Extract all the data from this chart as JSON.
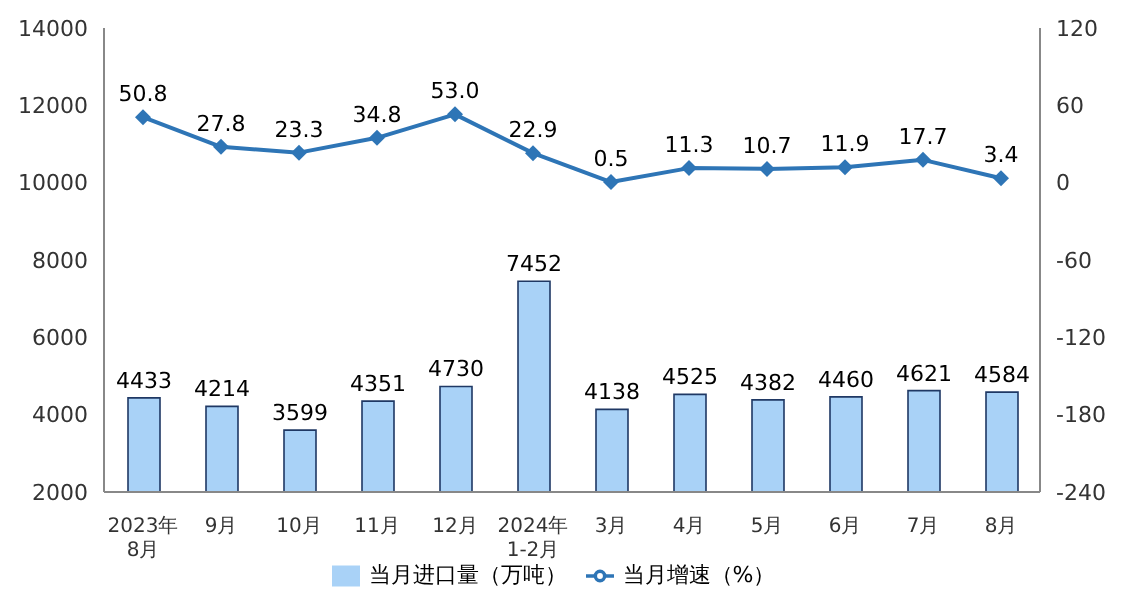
{
  "chart_data": {
    "type": "bar",
    "categories": [
      "2023年\n8月",
      "9月",
      "10月",
      "11月",
      "12月",
      "2024年\n1-2月",
      "3月",
      "4月",
      "5月",
      "6月",
      "7月",
      "8月"
    ],
    "series": [
      {
        "name": "当月进口量（万吨）",
        "color": "#a9d2f7",
        "values": [
          4433,
          4214,
          3599,
          4351,
          4730,
          7452,
          4138,
          4525,
          4382,
          4460,
          4621,
          4584
        ]
      },
      {
        "name": "当月增速（%）",
        "type": "line",
        "axis": "y2",
        "color": "#2e75b6",
        "values": [
          50.8,
          27.8,
          23.3,
          34.8,
          53.0,
          22.9,
          0.5,
          11.3,
          10.7,
          11.9,
          17.7,
          3.4
        ],
        "value_labels": [
          "50.8",
          "27.8",
          "23.3",
          "34.8",
          "53.0",
          "22.9",
          "0.5",
          "11.3",
          "10.7",
          "11.9",
          "17.7",
          "3.4"
        ]
      }
    ],
    "ylim": [
      2000,
      14000
    ],
    "yticks": [
      2000,
      4000,
      6000,
      8000,
      10000,
      12000,
      14000
    ],
    "y2lim": [
      -240,
      120
    ],
    "y2ticks": [
      -240,
      -180,
      -120,
      -60,
      0,
      60,
      120
    ],
    "data_labels": true,
    "grid": false,
    "legend": "bottom",
    "marker": "diamond",
    "line_style": "solid"
  }
}
